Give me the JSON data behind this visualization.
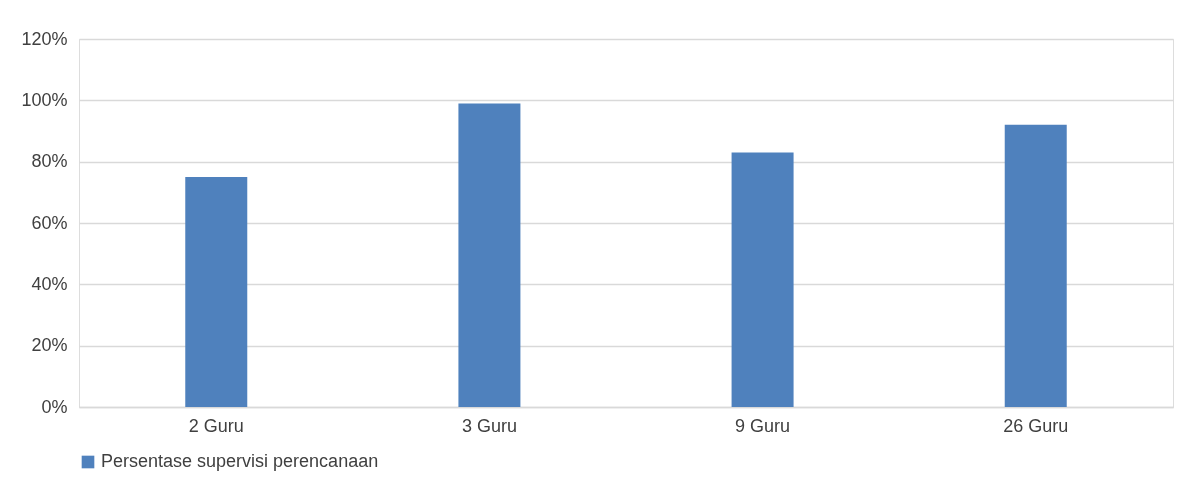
{
  "chart_data": {
    "type": "bar",
    "categories": [
      "2 Guru",
      "3 Guru",
      "9 Guru",
      "26 Guru"
    ],
    "series": [
      {
        "name": "Persentase supervisi perencanaan",
        "color": "#4f81bd",
        "values": [
          75,
          99,
          83,
          92
        ]
      }
    ],
    "ylim": [
      0,
      120
    ],
    "yticks": [
      {
        "value": 0,
        "label": "0%"
      },
      {
        "value": 20,
        "label": "20%"
      },
      {
        "value": 40,
        "label": "40%"
      },
      {
        "value": 60,
        "label": "60%"
      },
      {
        "value": 80,
        "label": "80%"
      },
      {
        "value": 100,
        "label": "100%"
      },
      {
        "value": 120,
        "label": "120%"
      }
    ],
    "grid": "y",
    "legend": "bottom"
  }
}
